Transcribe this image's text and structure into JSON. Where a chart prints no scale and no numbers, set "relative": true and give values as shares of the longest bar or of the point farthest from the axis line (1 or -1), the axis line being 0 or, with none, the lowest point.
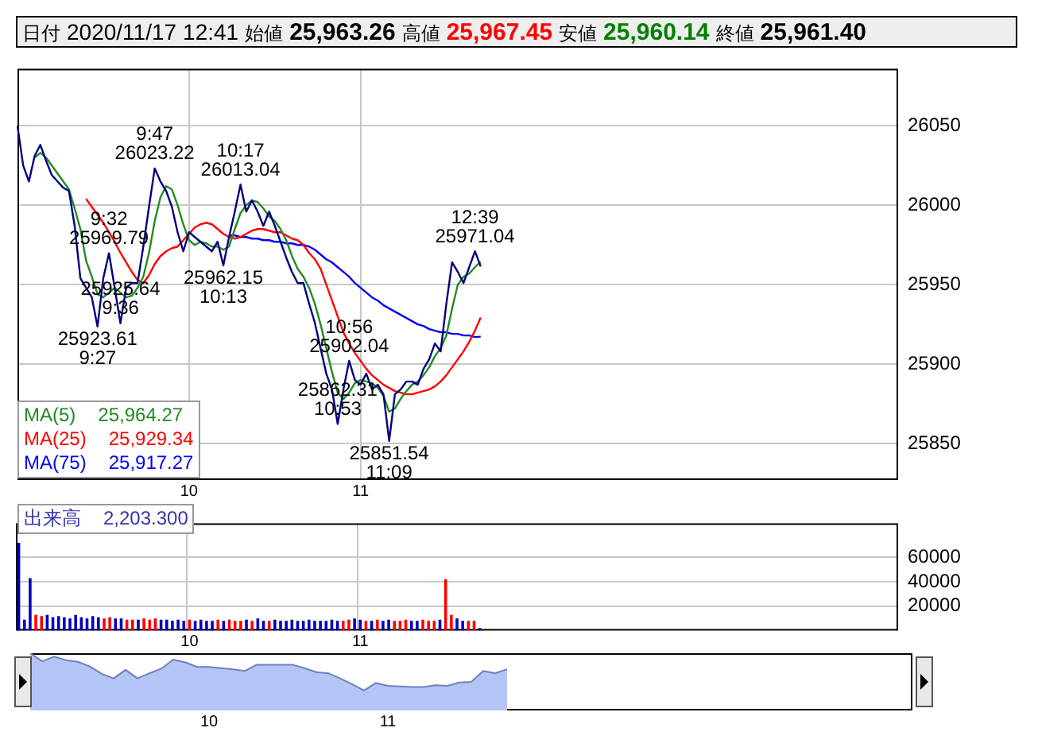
{
  "chart_data": [
    {
      "type": "line",
      "title": "日付 2020/11/17 12:41 始値 25,963.26 高値 25,967.45 安値 25,960.14 終値 25,961.40",
      "categories": [
        null,
        null,
        null,
        null,
        null,
        null,
        null,
        null,
        null,
        null,
        null,
        null,
        null,
        null,
        null,
        null,
        null,
        null,
        null,
        null,
        null,
        null,
        null,
        null,
        null,
        null,
        null,
        null,
        null,
        null,
        "10",
        null,
        null,
        null,
        null,
        null,
        null,
        null,
        null,
        null,
        null,
        null,
        null,
        null,
        null,
        null,
        null,
        null,
        null,
        null,
        null,
        null,
        null,
        null,
        null,
        null,
        null,
        null,
        null,
        null,
        "11",
        null,
        null,
        null,
        null,
        null,
        null,
        null,
        null,
        null,
        null,
        null,
        null,
        null,
        null,
        null,
        null,
        null,
        null,
        null,
        null,
        null,
        null,
        null,
        null,
        null,
        null,
        null,
        null,
        null,
        null,
        null,
        null,
        null,
        null,
        null,
        null,
        null,
        null,
        null,
        null,
        null,
        null,
        null,
        null,
        null,
        null,
        null,
        null,
        null,
        null,
        null,
        null,
        null,
        null,
        null,
        null,
        null,
        null,
        null,
        null,
        null,
        null,
        null,
        null,
        null,
        null,
        null,
        null,
        null,
        null,
        null,
        null,
        null,
        null,
        null,
        null,
        null,
        null,
        null,
        null,
        null,
        null,
        null,
        null,
        null,
        null,
        null,
        null,
        null,
        null,
        null,
        null,
        null,
        null
      ],
      "series": [
        {
          "color": "#000080",
          "values": [
            26050,
            26025,
            26015,
            26031,
            26038,
            26028,
            26019,
            26015,
            26011,
            26009,
            25987,
            25954,
            25948,
            25942,
            25923.61,
            25954,
            25969.79,
            25948,
            25925.64,
            25948,
            25951,
            25951,
            25974,
            25999,
            26023.22,
            26015,
            26009,
            25999,
            25983,
            25971,
            25983,
            25980,
            25977,
            25974,
            25971,
            25977,
            25962.15,
            25980,
            25996,
            26013.04,
            25996,
            26003,
            25996,
            25987,
            25996,
            25987,
            25977,
            25967,
            25958,
            25951,
            25951,
            25938,
            25926,
            25910,
            25894,
            25884,
            25862.31,
            25884,
            25902.04,
            25890,
            25887,
            25894,
            25884,
            25887,
            25881,
            25851.54,
            25881,
            25884,
            25889,
            25889,
            25887,
            25897,
            25903,
            25913,
            25908,
            25938,
            25964,
            25958,
            25951,
            25961,
            25971.04,
            25961.4,
            null,
            null,
            null,
            null,
            null,
            null,
            null,
            null,
            null,
            null,
            null,
            null,
            null,
            null,
            null,
            null,
            null,
            null,
            null,
            null,
            null,
            null,
            null,
            null,
            null,
            null,
            null,
            null,
            null,
            null,
            null,
            null,
            null,
            null,
            null,
            null,
            null,
            null,
            null,
            null,
            null,
            null,
            null,
            null,
            null,
            null,
            null,
            null,
            null,
            null,
            null,
            null,
            null,
            null,
            null,
            null,
            null,
            null,
            null,
            null,
            null,
            null,
            null,
            null,
            null,
            null,
            null,
            null,
            null,
            null,
            null,
            null,
            null
          ]
        },
        {
          "name": "MA(5) 25,964.27",
          "color": "#228b22",
          "values": [
            null,
            null,
            null,
            26030,
            26033,
            26030,
            26025,
            26020,
            26015,
            26010,
            25998,
            25985,
            25965,
            25955,
            25944,
            25942,
            25945,
            25948,
            25945,
            25942,
            25943,
            25948,
            25955,
            25970,
            25990,
            26005,
            26012,
            26010,
            26000,
            25988,
            25978,
            25975,
            25977,
            25976,
            25974,
            25974,
            25972,
            25974,
            25985,
            25995,
            26000,
            26003,
            26002,
            25998,
            25993,
            25990,
            25985,
            25978,
            25968,
            25960,
            25955,
            25948,
            25938,
            25925,
            25910,
            25895,
            25882,
            25878,
            25882,
            25888,
            25890,
            25889,
            25888,
            25885,
            25880,
            25870,
            25872,
            25878,
            25883,
            25887,
            25889,
            25893,
            25898,
            25905,
            25910,
            25918,
            25935,
            25950,
            25955,
            25957,
            25961,
            25964.27,
            null,
            null,
            null,
            null,
            null,
            null,
            null,
            null,
            null,
            null,
            null,
            null,
            null,
            null,
            null,
            null,
            null,
            null,
            null,
            null,
            null,
            null,
            null,
            null,
            null,
            null,
            null,
            null,
            null,
            null,
            null,
            null,
            null,
            null,
            null,
            null,
            null,
            null,
            null,
            null,
            null,
            null,
            null,
            null,
            null,
            null,
            null,
            null,
            null,
            null,
            null,
            null,
            null,
            null,
            null,
            null,
            null,
            null,
            null,
            null,
            null,
            null,
            null,
            null,
            null,
            null,
            null,
            null,
            null,
            null,
            null,
            null,
            null
          ]
        },
        {
          "name": "MA(25) 25,929.34",
          "color": "#ff0000",
          "values": [
            null,
            null,
            null,
            null,
            null,
            null,
            null,
            null,
            null,
            null,
            null,
            null,
            26004,
            25999,
            25994,
            25989,
            25983,
            25977,
            25970,
            25964,
            25958,
            25953,
            25951,
            25956,
            25963,
            25968,
            25971,
            25973,
            25974,
            25978,
            25982,
            25986,
            25988,
            25989,
            25988,
            25985,
            25982,
            25980,
            25979,
            25980,
            25982,
            25984,
            25985,
            25985,
            25984,
            25983,
            25983,
            25981,
            25979,
            25978,
            25975,
            25970,
            25966,
            25960,
            25950,
            25940,
            25930,
            25920,
            25913,
            25907,
            25902,
            25897,
            25893,
            25890,
            25887,
            25885,
            25883,
            25882,
            25881,
            25881,
            25882,
            25883,
            25884,
            25886,
            25889,
            25893,
            25898,
            25903,
            25908,
            25914,
            25921,
            25929.34,
            null,
            null,
            null,
            null,
            null,
            null,
            null,
            null,
            null,
            null,
            null,
            null,
            null,
            null,
            null,
            null,
            null,
            null,
            null,
            null,
            null,
            null,
            null,
            null,
            null,
            null,
            null,
            null,
            null,
            null,
            null,
            null,
            null,
            null,
            null,
            null,
            null,
            null,
            null,
            null,
            null,
            null,
            null,
            null,
            null,
            null,
            null,
            null,
            null,
            null,
            null,
            null,
            null,
            null,
            null,
            null,
            null,
            null,
            null,
            null,
            null,
            null,
            null,
            null,
            null,
            null,
            null,
            null,
            null,
            null,
            null,
            null,
            null
          ]
        },
        {
          "name": "MA(75) 25,917.27",
          "color": "#0000ff",
          "values": [
            null,
            null,
            null,
            null,
            null,
            null,
            null,
            null,
            null,
            null,
            null,
            null,
            null,
            null,
            null,
            null,
            null,
            null,
            null,
            null,
            null,
            null,
            null,
            null,
            null,
            null,
            null,
            null,
            null,
            null,
            null,
            null,
            null,
            null,
            null,
            null,
            null,
            25981,
            25981,
            25980,
            25980,
            25979,
            25979,
            25978,
            25978,
            25977,
            25977,
            25976,
            25976,
            25975,
            25975,
            25974,
            25972,
            25969,
            25966,
            25964,
            25961,
            25958,
            25955,
            25951,
            25948,
            25945,
            25942,
            25940,
            25937,
            25935,
            25933,
            25931,
            25929,
            25927,
            25925,
            25924,
            25922,
            25921,
            25920,
            25920,
            25919,
            25919,
            25918,
            25918,
            25917,
            25917.27,
            null,
            null,
            null,
            null,
            null,
            null,
            null,
            null,
            null,
            null,
            null,
            null,
            null,
            null,
            null,
            null,
            null,
            null,
            null,
            null,
            null,
            null,
            null,
            null,
            null,
            null,
            null,
            null,
            null,
            null,
            null,
            null,
            null,
            null,
            null,
            null,
            null,
            null,
            null,
            null,
            null,
            null,
            null,
            null,
            null,
            null,
            null,
            null,
            null,
            null,
            null,
            null,
            null,
            null,
            null,
            null,
            null,
            null,
            null,
            null,
            null,
            null,
            null,
            null,
            null,
            null,
            null,
            null,
            null,
            null,
            null,
            null,
            null
          ]
        }
      ],
      "ylim": [
        25827,
        26086
      ],
      "yticks": [
        25850,
        25900,
        25950,
        26000,
        26050
      ],
      "grid": true,
      "legend": "bottom left",
      "annotations": [
        {
          "text": "25923.61\n9:27",
          "y": 25923.61
        },
        {
          "text": "9:32\n25969.79",
          "y": 25969.79
        },
        {
          "text": "25925.64\n9:36",
          "y": 25925.64
        },
        {
          "text": "9:47\n26023.22",
          "y": 26023.22
        },
        {
          "text": "25962.15\n10:13",
          "y": 25962.15
        },
        {
          "text": "10:17\n26013.04",
          "y": 26013.04
        },
        {
          "text": "25851.54\n11:09",
          "y": 25851.54
        },
        {
          "text": "10:56\n25902.04",
          "y": 25902.04
        },
        {
          "text": "25862.31\n10:53",
          "y": 25862.31
        },
        {
          "text": "12:39\n25971.04",
          "y": 25971.04
        }
      ]
    },
    {
      "type": "bar",
      "categories": [
        null,
        null,
        null,
        null,
        null,
        null,
        null,
        null,
        null,
        null,
        null,
        null,
        null,
        null,
        null,
        null,
        null,
        null,
        null,
        null,
        null,
        null,
        null,
        null,
        null,
        null,
        null,
        null,
        null,
        null,
        "10",
        null,
        null,
        null,
        null,
        null,
        null,
        null,
        null,
        null,
        null,
        null,
        null,
        null,
        null,
        null,
        null,
        null,
        null,
        null,
        null,
        null,
        null,
        null,
        null,
        null,
        null,
        null,
        null,
        null,
        "11",
        null,
        null,
        null,
        null,
        null,
        null,
        null,
        null,
        null,
        null,
        null,
        null,
        null,
        null,
        null,
        null,
        null,
        null,
        null,
        null,
        null,
        null,
        null,
        null,
        null,
        null,
        null,
        null,
        null,
        null,
        null,
        null,
        null,
        null,
        null,
        null,
        null,
        null,
        null,
        null,
        null,
        null,
        null,
        null,
        null,
        null,
        null,
        null,
        null,
        null,
        null,
        null,
        null,
        null,
        null,
        null,
        null,
        null,
        null,
        null,
        null,
        null,
        null,
        null,
        null,
        null,
        null,
        null,
        null,
        null,
        null,
        null,
        null,
        null,
        null,
        null,
        null,
        null,
        null,
        null,
        null,
        null,
        null,
        null,
        null,
        null,
        null,
        null,
        null,
        null,
        null,
        null,
        null,
        null
      ],
      "series": [
        {
          "name": "出来高 2,203.300",
          "color": "#3333aa",
          "colors": [
            "#0000c0",
            "#0000c0",
            "#0000c0",
            "#ff0000",
            "#ff0000",
            "#0000c0",
            "#0000c0",
            "#0000c0",
            "#0000c0",
            "#0000c0",
            "#0000c0",
            "#0000c0",
            "#0000c0",
            "#0000c0",
            "#0000c0",
            "#ff0000",
            "#ff0000",
            "#0000c0",
            "#0000c0",
            "#ff0000",
            "#ff0000",
            "#0000c0",
            "#ff0000",
            "#ff0000",
            "#ff0000",
            "#0000c0",
            "#0000c0",
            "#0000c0",
            "#0000c0",
            "#0000c0",
            "#ff0000",
            "#0000c0",
            "#0000c0",
            "#0000c0",
            "#0000c0",
            "#ff0000",
            "#0000c0",
            "#ff0000",
            "#ff0000",
            "#ff0000",
            "#0000c0",
            "#ff0000",
            "#0000c0",
            "#0000c0",
            "#ff0000",
            "#0000c0",
            "#0000c0",
            "#0000c0",
            "#0000c0",
            "#0000c0",
            "#0000c0",
            "#0000c0",
            "#0000c0",
            "#0000c0",
            "#0000c0",
            "#0000c0",
            "#0000c0",
            "#ff0000",
            "#ff0000",
            "#0000c0",
            "#0000c0",
            "#ff0000",
            "#0000c0",
            "#ff0000",
            "#0000c0",
            "#0000c0",
            "#ff0000",
            "#ff0000",
            "#ff0000",
            "#0000c0",
            "#0000c0",
            "#ff0000",
            "#ff0000",
            "#ff0000",
            "#0000c0",
            "#ff0000",
            "#ff0000",
            "#0000c0",
            "#0000c0",
            "#ff0000",
            "#ff0000",
            "#0000c0",
            null,
            null,
            null,
            null,
            null,
            null,
            null,
            null,
            null,
            null,
            null,
            null,
            null,
            null,
            null,
            null,
            null,
            null,
            null,
            null,
            null,
            null,
            null,
            null,
            null,
            null,
            null,
            null,
            null,
            null,
            null,
            null,
            null,
            null,
            null,
            null,
            null,
            null,
            null,
            null,
            null,
            null,
            null,
            null,
            null,
            null,
            null,
            null,
            null,
            null,
            null,
            null,
            null,
            null,
            null,
            null,
            null,
            null,
            null,
            null,
            null,
            null,
            null,
            null,
            null,
            null,
            null,
            null,
            null,
            null,
            null,
            null,
            null
          ],
          "values": [
            72000,
            9000,
            43000,
            13000,
            12000,
            13000,
            11000,
            12000,
            11000,
            10000,
            13000,
            11000,
            10000,
            12000,
            11000,
            10000,
            11000,
            10000,
            10000,
            9000,
            9000,
            9000,
            10000,
            9000,
            10000,
            9000,
            9000,
            8000,
            9000,
            8000,
            9000,
            8000,
            9000,
            8000,
            8000,
            9000,
            8000,
            9000,
            8000,
            8000,
            9000,
            8000,
            10000,
            8000,
            8000,
            9000,
            8000,
            8000,
            9000,
            8000,
            8000,
            9000,
            8000,
            8000,
            8000,
            9000,
            8000,
            8000,
            9000,
            10000,
            9000,
            8000,
            8000,
            9000,
            8000,
            9000,
            8000,
            8000,
            9000,
            8000,
            8000,
            9000,
            8000,
            8000,
            9000,
            42000,
            13000,
            10000,
            8000,
            8000,
            8000,
            2203.3,
            null,
            null,
            null,
            null,
            null,
            null,
            null,
            null,
            null,
            null,
            null,
            null,
            null,
            null,
            null,
            null,
            null,
            null,
            null,
            null,
            null,
            null,
            null,
            null,
            null,
            null,
            null,
            null,
            null,
            null,
            null,
            null,
            null,
            null,
            null,
            null,
            null,
            null,
            null,
            null,
            null,
            null,
            null,
            null,
            null,
            null,
            null,
            null,
            null,
            null,
            null,
            null,
            null,
            null,
            null,
            null,
            null,
            null,
            null,
            null,
            null,
            null,
            null,
            null,
            null,
            null,
            null,
            null,
            null,
            null,
            null,
            null,
            null
          ]
        }
      ],
      "ylim": [
        0,
        88000
      ],
      "yticks": [
        20000,
        40000,
        60000
      ],
      "grid": true,
      "legend": "top left"
    },
    {
      "type": "area",
      "relative": true,
      "tick_labels": "x",
      "categories": [
        null,
        null,
        null,
        null,
        null,
        null,
        null,
        null,
        null,
        null,
        null,
        null,
        null,
        null,
        null,
        "10",
        null,
        null,
        null,
        null,
        null,
        null,
        null,
        null,
        null,
        null,
        null,
        null,
        null,
        null,
        "11",
        null,
        null,
        null,
        null,
        null,
        null,
        null,
        null,
        null,
        null,
        null,
        null,
        null,
        null,
        null,
        null,
        null,
        null,
        null,
        null,
        null,
        null,
        null,
        null,
        null,
        null,
        null,
        null,
        null,
        null,
        null,
        null,
        null,
        null,
        null,
        null,
        null,
        null,
        null,
        null,
        null,
        null,
        null,
        null
      ],
      "series": [
        {
          "color": "#b4c4f4",
          "values": [
            1,
            0.86,
            0.94,
            0.88,
            0.85,
            0.77,
            0.64,
            0.56,
            0.71,
            0.56,
            0.65,
            0.73,
            0.89,
            0.84,
            0.76,
            0.76,
            0.74,
            0.72,
            0.69,
            0.8,
            0.8,
            0.8,
            0.8,
            0.74,
            0.67,
            0.65,
            0.56,
            0.46,
            0.35,
            0.48,
            0.43,
            0.42,
            0.41,
            0.41,
            0.44,
            0.43,
            0.49,
            0.5,
            0.69,
            0.65,
            0.72,
            null,
            null,
            null,
            null,
            null,
            null,
            null,
            null,
            null,
            null,
            null,
            null,
            null,
            null,
            null,
            null,
            null,
            null,
            null,
            null,
            null,
            null,
            null,
            null,
            null,
            null,
            null,
            null,
            null,
            null,
            null,
            null,
            null,
            null
          ]
        }
      ]
    }
  ]
}
